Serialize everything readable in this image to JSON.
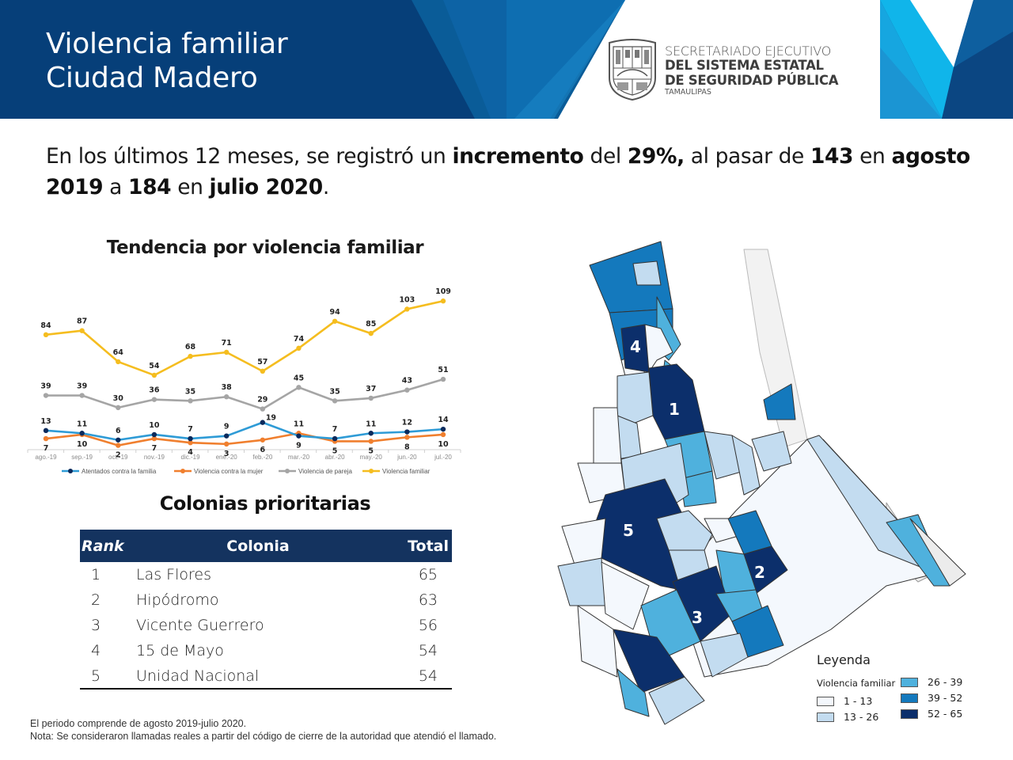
{
  "header": {
    "title_line1": "Violencia familiar",
    "title_line2": "Ciudad Madero",
    "logo": {
      "icon": "state-coat-of-arms-icon",
      "line1": "SECRETARIADO EJECUTIVO",
      "line2": "DEL SISTEMA ESTATAL",
      "line3": "DE SEGURIDAD PÚBLICA",
      "line4": "TAMAULIPAS"
    }
  },
  "summary": {
    "p1": "En los últimos 12 meses, se registró un ",
    "b1": "incremento",
    "p2": " del ",
    "b2": "29%,",
    "p3": " al pasar de ",
    "b3": "143",
    "p4": " en ",
    "b4": "agosto 2019",
    "p5": " a ",
    "b5": "184",
    "p6": " en ",
    "b6": "julio 2020",
    "p7": "."
  },
  "chart_data": {
    "type": "line",
    "title": "Tendencia por violencia familiar",
    "xlabel": "",
    "ylabel": "",
    "categories": [
      "ago.-19",
      "sep.-19",
      "oct.-19",
      "nov.-19",
      "dic.-19",
      "ene.-20",
      "feb.-20",
      "mar.-20",
      "abr.-20",
      "may.-20",
      "jun.-20",
      "jul.-20"
    ],
    "ylim": [
      0,
      115
    ],
    "grid": false,
    "legend_position": "bottom",
    "series": [
      {
        "name": "Atentados contra la familia",
        "color": "#2e9bd6",
        "marker_color": "#0b2a5c",
        "values": [
          13,
          11,
          6,
          10,
          7,
          9,
          19,
          9,
          7,
          11,
          12,
          14
        ],
        "label_pos": [
          "above",
          "above",
          "above",
          "above",
          "above",
          "above",
          "right",
          "below",
          "above",
          "above",
          "above",
          "above"
        ]
      },
      {
        "name": "Violencia contra la mujer",
        "color": "#f07f2e",
        "marker_color": "#f07f2e",
        "values": [
          7,
          10,
          2,
          7,
          4,
          3,
          6,
          11,
          5,
          5,
          8,
          10
        ],
        "label_pos": [
          "below",
          "below",
          "below",
          "below",
          "below",
          "below",
          "below",
          "above",
          "below",
          "below",
          "below",
          "below"
        ]
      },
      {
        "name": "Violencia de pareja",
        "color": "#a5a5a5",
        "marker_color": "#a5a5a5",
        "values": [
          39,
          39,
          30,
          36,
          35,
          38,
          29,
          45,
          35,
          37,
          43,
          51
        ],
        "label_pos": [
          "above",
          "above",
          "above",
          "above",
          "above",
          "above",
          "above",
          "above",
          "above",
          "above",
          "above",
          "above"
        ]
      },
      {
        "name": "Violencia familiar",
        "color": "#f5bd1f",
        "marker_color": "#f5bd1f",
        "values": [
          84,
          87,
          64,
          54,
          68,
          71,
          57,
          74,
          94,
          85,
          103,
          109
        ],
        "label_pos": [
          "above",
          "above",
          "above",
          "above",
          "above",
          "above",
          "above",
          "above",
          "above",
          "above",
          "above",
          "above"
        ]
      }
    ]
  },
  "table": {
    "title": "Colonias prioritarias",
    "headers": {
      "rank": "Rank",
      "colonia": "Colonia",
      "total": "Total"
    },
    "header_color": "#14335f",
    "rows": [
      {
        "rank": "1",
        "colonia": "Las Flores",
        "total": "65"
      },
      {
        "rank": "2",
        "colonia": "Hipódromo",
        "total": "63"
      },
      {
        "rank": "3",
        "colonia": "Vicente Guerrero",
        "total": "56"
      },
      {
        "rank": "4",
        "colonia": "15 de Mayo",
        "total": "54"
      },
      {
        "rank": "5",
        "colonia": "Unidad Nacional",
        "total": "54"
      }
    ]
  },
  "notes": {
    "line1": "El periodo comprende de agosto 2019-julio 2020.",
    "line2": "Nota: Se consideraron llamadas reales a partir del código de cierre de la autoridad que atendió el llamado."
  },
  "map": {
    "rank_labels": [
      "1",
      "2",
      "3",
      "4",
      "5"
    ],
    "legend": {
      "title": "Leyenda",
      "subtitle": "Violencia familiar",
      "classes": [
        {
          "label": "1 - 13",
          "color": "#f4f8fd"
        },
        {
          "label": "13 - 26",
          "color": "#c3dcf0"
        },
        {
          "label": "26 - 39",
          "color": "#4fb1dd"
        },
        {
          "label": "39 - 52",
          "color": "#1479bd"
        },
        {
          "label": "52 - 65",
          "color": "#0c2f6b"
        }
      ]
    }
  }
}
